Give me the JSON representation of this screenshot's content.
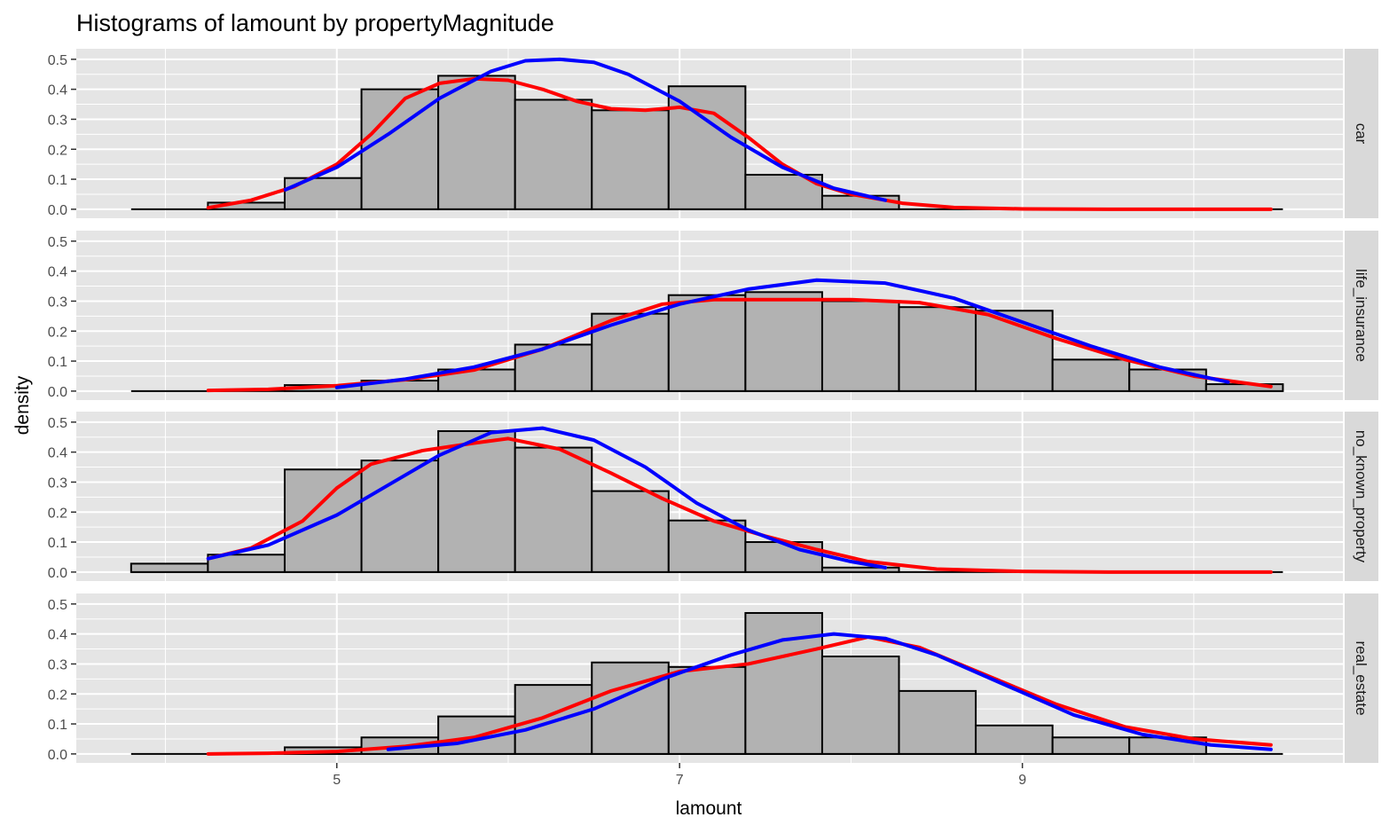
{
  "chart_data": {
    "type": "bar",
    "title": "Histograms of lamount by propertyMagnitude",
    "xlabel": "lamount",
    "ylabel": "density",
    "xlim": [
      3.48,
      10.87
    ],
    "ylim": [
      -0.03,
      0.535
    ],
    "x_ticks": [
      5,
      7,
      9
    ],
    "x_tick_labels": [
      "5",
      "7",
      "9"
    ],
    "y_ticks": [
      0.0,
      0.1,
      0.2,
      0.3,
      0.4,
      0.5
    ],
    "y_tick_labels": [
      "0.0",
      "0.1",
      "0.2",
      "0.3",
      "0.4",
      "0.5"
    ],
    "grid": true,
    "facet_by": "propertyMagnitude",
    "bin_edges": [
      3.8,
      4.248,
      4.696,
      5.144,
      5.592,
      6.04,
      6.488,
      6.936,
      7.384,
      7.832,
      8.28,
      8.728,
      9.176,
      9.624,
      10.072,
      10.52
    ],
    "colors": {
      "bar_fill": "#b2b2b2",
      "bar_stroke": "#000000",
      "panel_background": "#e5e5e5",
      "strip_background": "#d9d9d9",
      "gridline": "#ffffff",
      "series_1": "#ff0000",
      "series_2": "#0000ff"
    },
    "panels": [
      {
        "label": "car",
        "values": [
          0.0,
          0.022,
          0.104,
          0.4,
          0.445,
          0.365,
          0.33,
          0.41,
          0.115,
          0.045,
          0.0,
          0.0,
          0.0,
          0.0,
          0.0
        ],
        "series": [
          {
            "color": "red",
            "x": [
              4.25,
              4.5,
              4.75,
              5.0,
              5.2,
              5.4,
              5.6,
              5.8,
              6.0,
              6.2,
              6.4,
              6.6,
              6.8,
              7.0,
              7.2,
              7.4,
              7.6,
              7.8,
              8.0,
              8.3,
              8.6,
              9.0,
              9.5,
              10.0,
              10.45
            ],
            "y": [
              0.005,
              0.03,
              0.075,
              0.15,
              0.25,
              0.37,
              0.42,
              0.435,
              0.43,
              0.4,
              0.36,
              0.335,
              0.33,
              0.34,
              0.32,
              0.24,
              0.15,
              0.085,
              0.05,
              0.02,
              0.006,
              0.001,
              0.0,
              0.0,
              0.0
            ]
          },
          {
            "color": "blue",
            "x": [
              4.7,
              5.0,
              5.3,
              5.6,
              5.9,
              6.1,
              6.3,
              6.5,
              6.7,
              7.0,
              7.3,
              7.6,
              7.9,
              8.2
            ],
            "y": [
              0.065,
              0.14,
              0.25,
              0.37,
              0.46,
              0.495,
              0.5,
              0.49,
              0.45,
              0.36,
              0.24,
              0.14,
              0.07,
              0.03
            ]
          }
        ]
      },
      {
        "label": "life_insurance",
        "values": [
          0.0,
          0.0,
          0.02,
          0.035,
          0.072,
          0.155,
          0.258,
          0.32,
          0.33,
          0.3,
          0.28,
          0.268,
          0.105,
          0.072,
          0.023
        ],
        "series": [
          {
            "color": "red",
            "x": [
              4.25,
              4.6,
              5.0,
              5.4,
              5.8,
              6.2,
              6.6,
              6.9,
              7.2,
              7.6,
              8.0,
              8.4,
              8.8,
              9.2,
              9.6,
              10.0,
              10.45
            ],
            "y": [
              0.002,
              0.006,
              0.018,
              0.038,
              0.07,
              0.14,
              0.235,
              0.29,
              0.305,
              0.305,
              0.305,
              0.295,
              0.255,
              0.175,
              0.105,
              0.05,
              0.015
            ]
          },
          {
            "color": "blue",
            "x": [
              5.0,
              5.4,
              5.8,
              6.2,
              6.6,
              7.0,
              7.4,
              7.8,
              8.2,
              8.6,
              9.0,
              9.4,
              9.8,
              10.2
            ],
            "y": [
              0.012,
              0.04,
              0.08,
              0.14,
              0.22,
              0.29,
              0.34,
              0.37,
              0.36,
              0.31,
              0.23,
              0.15,
              0.08,
              0.03
            ]
          }
        ]
      },
      {
        "label": "no_known_property",
        "values": [
          0.028,
          0.058,
          0.342,
          0.372,
          0.47,
          0.415,
          0.27,
          0.172,
          0.1,
          0.015,
          0.0,
          0.0,
          0.0,
          0.0,
          0.0
        ],
        "series": [
          {
            "color": "red",
            "x": [
              4.25,
              4.5,
              4.8,
              5.0,
              5.2,
              5.5,
              5.8,
              6.0,
              6.3,
              6.6,
              6.9,
              7.2,
              7.5,
              7.8,
              8.1,
              8.5,
              9.0,
              9.5,
              10.0,
              10.45
            ],
            "y": [
              0.045,
              0.08,
              0.17,
              0.28,
              0.36,
              0.405,
              0.43,
              0.445,
              0.41,
              0.33,
              0.245,
              0.17,
              0.12,
              0.075,
              0.035,
              0.01,
              0.002,
              0.0,
              0.0,
              0.0
            ]
          },
          {
            "color": "blue",
            "x": [
              4.25,
              4.6,
              5.0,
              5.3,
              5.6,
              5.9,
              6.2,
              6.5,
              6.8,
              7.1,
              7.4,
              7.7,
              8.0,
              8.2
            ],
            "y": [
              0.045,
              0.09,
              0.19,
              0.29,
              0.39,
              0.465,
              0.48,
              0.44,
              0.35,
              0.23,
              0.14,
              0.075,
              0.035,
              0.015
            ]
          }
        ]
      },
      {
        "label": "real_estate",
        "values": [
          0.0,
          0.0,
          0.022,
          0.055,
          0.125,
          0.23,
          0.305,
          0.29,
          0.47,
          0.325,
          0.21,
          0.095,
          0.055,
          0.055,
          0.0
        ],
        "series": [
          {
            "color": "red",
            "x": [
              4.25,
              4.6,
              5.0,
              5.4,
              5.8,
              6.2,
              6.6,
              7.0,
              7.4,
              7.8,
              8.1,
              8.4,
              8.8,
              9.2,
              9.6,
              10.0,
              10.45
            ],
            "y": [
              0.0,
              0.002,
              0.008,
              0.025,
              0.055,
              0.12,
              0.21,
              0.275,
              0.3,
              0.35,
              0.39,
              0.355,
              0.26,
              0.165,
              0.09,
              0.05,
              0.03
            ]
          },
          {
            "color": "blue",
            "x": [
              5.3,
              5.7,
              6.1,
              6.5,
              6.9,
              7.3,
              7.6,
              7.9,
              8.2,
              8.5,
              8.9,
              9.3,
              9.7,
              10.1,
              10.45
            ],
            "y": [
              0.015,
              0.035,
              0.08,
              0.15,
              0.25,
              0.33,
              0.38,
              0.4,
              0.385,
              0.33,
              0.23,
              0.13,
              0.065,
              0.03,
              0.015
            ]
          }
        ]
      }
    ]
  }
}
